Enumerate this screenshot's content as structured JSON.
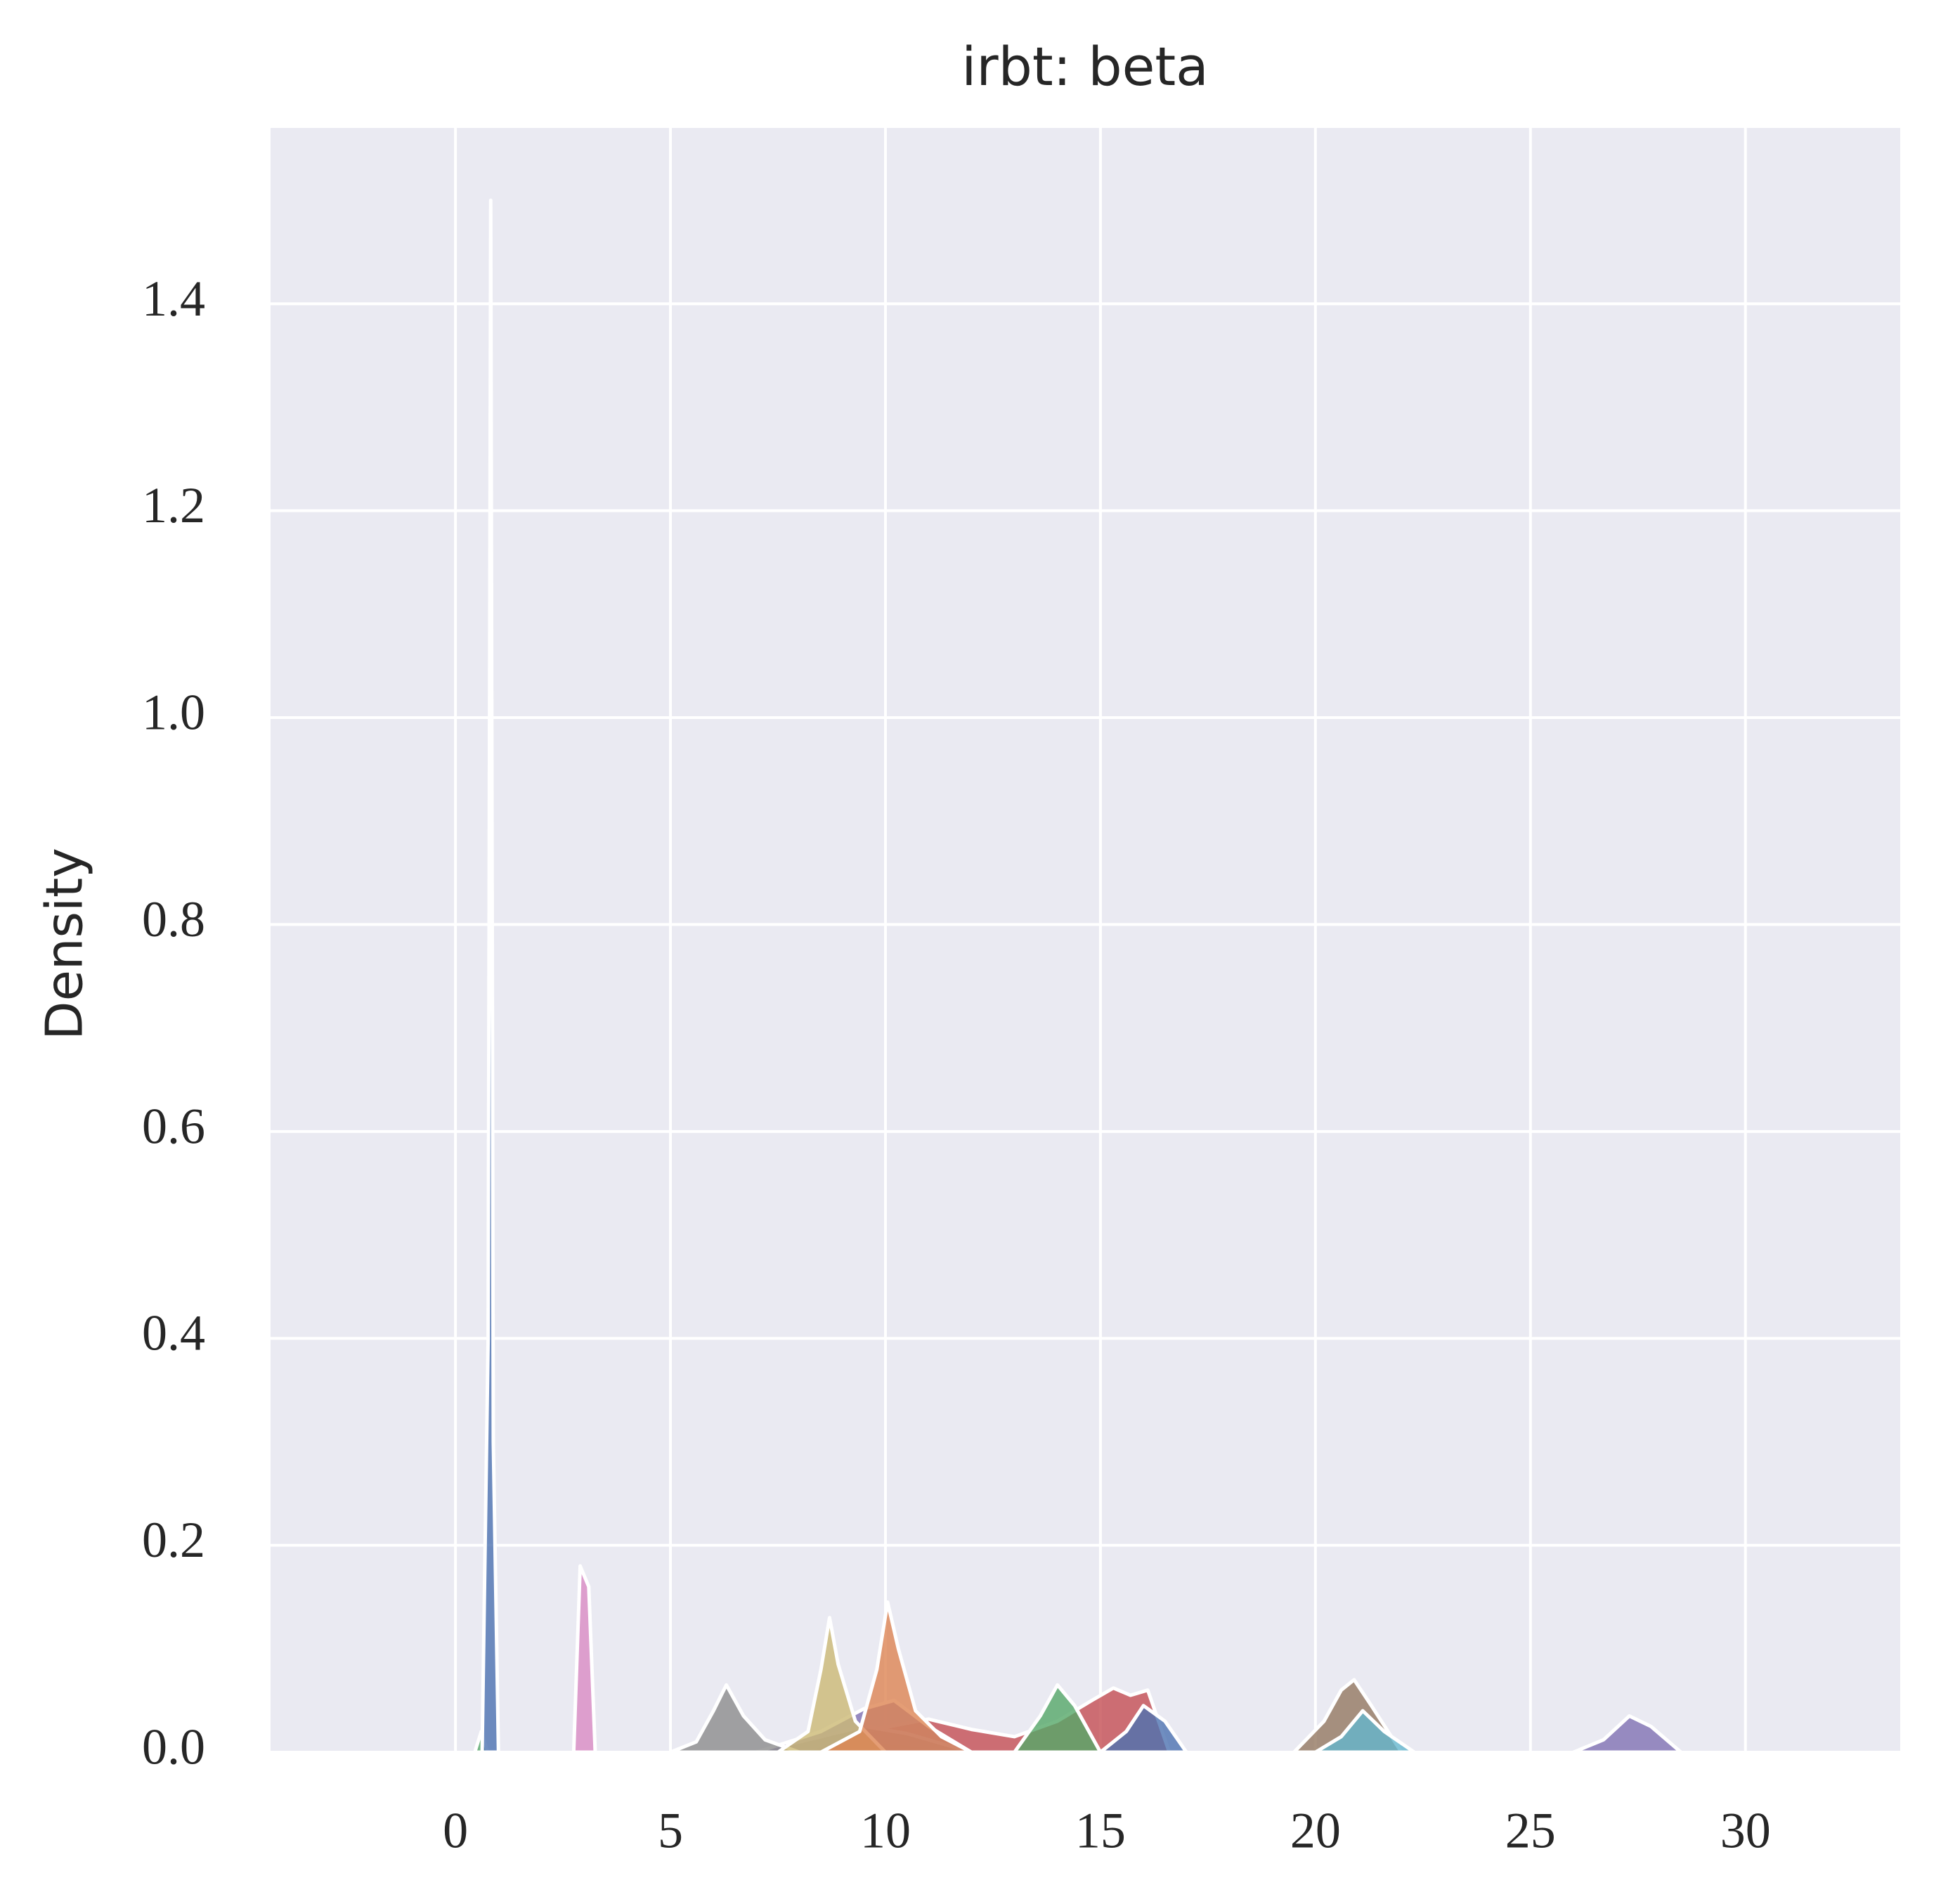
{
  "chart_data": {
    "type": "density",
    "title": "irbt:  beta",
    "ylabel": "Density",
    "xlim": [
      -4.3,
      33.6
    ],
    "ylim": [
      0,
      1.57
    ],
    "xticks": [
      0,
      5,
      10,
      15,
      20,
      25,
      30
    ],
    "yticks": [
      {
        "value": 0,
        "label": "0.0"
      },
      0.2,
      0.4,
      0.6,
      0.8,
      {
        "value": 1,
        "label": "1.0"
      },
      1.2,
      1.4
    ],
    "grid": true,
    "background": "#eaeaf2",
    "series": [
      {
        "color": "#da8bc3",
        "x": [
          7,
          8.5,
          9.5,
          10.5,
          12
        ],
        "values": [
          0,
          0.005,
          0.01,
          0.008,
          0
        ]
      },
      {
        "color": "#c44e52",
        "x": [
          8,
          9.5,
          11,
          12,
          13,
          14,
          14.8,
          15.3,
          15.7,
          16.1,
          16.6
        ],
        "values": [
          0,
          0.02,
          0.032,
          0.022,
          0.015,
          0.03,
          0.05,
          0.062,
          0.055,
          0.06,
          0
        ]
      },
      {
        "color": "#937860",
        "x": [
          7,
          8.5,
          9.5,
          10.5,
          12
        ],
        "values": [
          0,
          0.015,
          0.025,
          0.018,
          0
        ]
      },
      {
        "color": "#8172b3",
        "x": [
          7,
          8.5,
          9.5,
          10.2,
          11,
          12
        ],
        "values": [
          0,
          0.02,
          0.042,
          0.05,
          0.025,
          0
        ]
      },
      {
        "color": "#8c8c8c",
        "x": [
          5,
          5.6,
          6,
          6.3,
          6.7,
          7.2,
          8
        ],
        "values": [
          0,
          0.01,
          0.04,
          0.065,
          0.035,
          0.012,
          0
        ]
      },
      {
        "color": "#ccb974",
        "x": [
          7.5,
          8.2,
          8.5,
          8.7,
          8.9,
          9.3,
          10
        ],
        "values": [
          0,
          0.02,
          0.08,
          0.13,
          0.085,
          0.03,
          0
        ]
      },
      {
        "color": "#dd8452",
        "x": [
          8.5,
          9.4,
          9.8,
          10.05,
          10.3,
          10.7,
          11.3,
          12
        ],
        "values": [
          0,
          0.02,
          0.08,
          0.145,
          0.1,
          0.04,
          0.015,
          0
        ]
      },
      {
        "color": "#55a868",
        "x": [
          13,
          13.6,
          14,
          14.4,
          15
        ],
        "values": [
          0,
          0.035,
          0.065,
          0.045,
          0
        ]
      },
      {
        "color": "#4c72b0",
        "x": [
          15,
          15.6,
          16,
          16.5,
          17
        ],
        "values": [
          0,
          0.02,
          0.045,
          0.03,
          0
        ]
      },
      {
        "color": "#937860",
        "x": [
          19.5,
          20.2,
          20.6,
          20.9,
          21.3,
          22
        ],
        "values": [
          0,
          0.03,
          0.06,
          0.07,
          0.045,
          0
        ]
      },
      {
        "color": "#64b5cd",
        "x": [
          20,
          20.6,
          21.1,
          21.6,
          22.3
        ],
        "values": [
          0,
          0.015,
          0.04,
          0.02,
          0
        ]
      },
      {
        "color": "#8172b3",
        "x": [
          26,
          26.7,
          27.3,
          27.8,
          28.5
        ],
        "values": [
          0,
          0.012,
          0.035,
          0.025,
          0
        ]
      },
      {
        "color": "#da8bc3",
        "x": [
          2.75,
          2.9,
          3.1,
          3.25
        ],
        "values": [
          0,
          0.18,
          0.16,
          0
        ]
      },
      {
        "color": "#55a868",
        "x": [
          0.45,
          0.6,
          0.75
        ],
        "values": [
          0,
          0.02,
          0
        ]
      },
      {
        "color": "#4c72b0",
        "x": [
          0.62,
          0.76,
          0.82,
          0.88,
          1.0
        ],
        "values": [
          0,
          0.4,
          1.5,
          0.3,
          0
        ]
      }
    ]
  }
}
